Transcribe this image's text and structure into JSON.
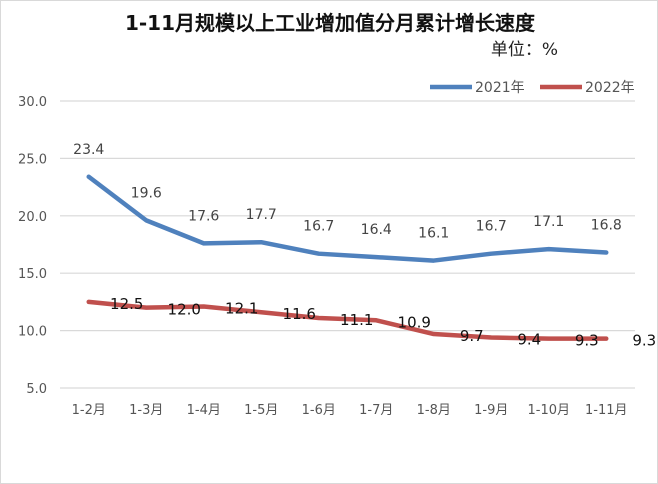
{
  "chart_data": {
    "type": "line",
    "title": "1-11月规模以上工业增加值分月累计增长速度",
    "unit_label": "单位：%",
    "categories": [
      "1-2月",
      "1-3月",
      "1-4月",
      "1-5月",
      "1-6月",
      "1-7月",
      "1-8月",
      "1-9月",
      "1-10月",
      "1-11月"
    ],
    "series": [
      {
        "name": "2021年",
        "color": "#4f81bd",
        "values": [
          23.4,
          19.6,
          17.6,
          17.7,
          16.7,
          16.4,
          16.1,
          16.7,
          17.1,
          16.8
        ],
        "labels": [
          "23.4",
          "19.6",
          "17.6",
          "17.7",
          "16.7",
          "16.4",
          "16.1",
          "16.7",
          "17.1",
          "16.8"
        ]
      },
      {
        "name": "2022年",
        "color": "#c0504d",
        "values": [
          12.5,
          12.0,
          12.1,
          11.6,
          11.1,
          10.9,
          9.7,
          9.4,
          9.3,
          9.3
        ],
        "labels": [
          "12.5",
          "12.0",
          "12.1",
          "11.6",
          "11.1",
          "10.9",
          "9.7",
          "9.4",
          "9.3",
          "9.3"
        ]
      }
    ],
    "ylim": [
      0,
      30
    ],
    "yticks": [
      "5.0",
      "10.0",
      "15.0",
      "20.0",
      "25.0",
      "30.0"
    ],
    "grid": true,
    "legend_position": "top-right"
  }
}
